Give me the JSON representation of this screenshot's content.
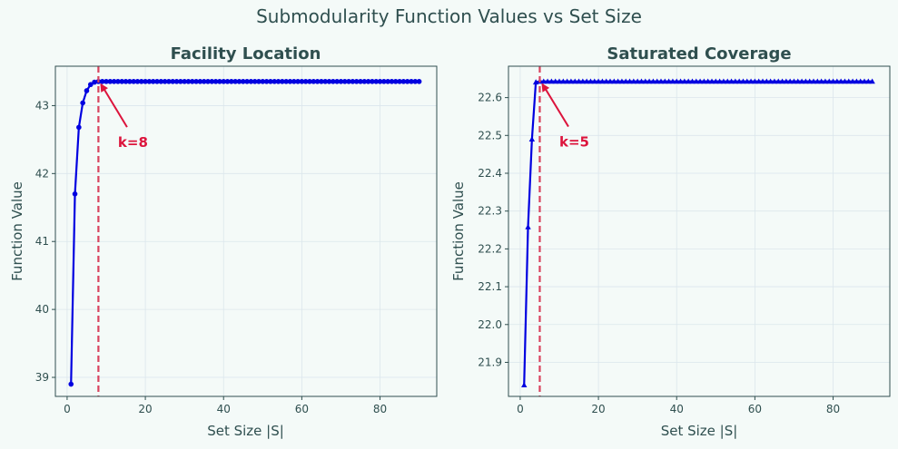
{
  "figure": {
    "suptitle": "Submodularity Function Values vs Set Size",
    "background": "#f4faf8"
  },
  "colors": {
    "line": "#0000e0",
    "vline": "#d9435e",
    "annotation": "#dc143c",
    "text": "#2f4f4f",
    "grid": "#dbe6ec",
    "axes_bg": "#f4faf8",
    "spine": "#2f4f4f"
  },
  "chart_data": [
    {
      "type": "line",
      "title": "Facility Location",
      "xlabel": "Set Size |S|",
      "ylabel": "Function Value",
      "xlim": [
        -3,
        94.5
      ],
      "ylim": [
        38.72,
        43.58
      ],
      "xticks": [
        0,
        20,
        40,
        60,
        80
      ],
      "xtick_labels": [
        "0",
        "20",
        "40",
        "60",
        "80"
      ],
      "yticks": [
        39,
        40,
        41,
        42,
        43
      ],
      "ytick_labels": [
        "39",
        "40",
        "41",
        "42",
        "43"
      ],
      "grid": true,
      "marker": "circle",
      "x_start": 1,
      "x_end": 90,
      "values_head": [
        38.9,
        41.7,
        42.68,
        43.04,
        43.22,
        43.31,
        43.345,
        43.355
      ],
      "plateau": 43.355,
      "vline_x": 8,
      "annotation": {
        "text": "k=8",
        "xy": [
          8,
          43.355
        ],
        "text_xy": [
          13,
          42.47
        ]
      }
    },
    {
      "type": "line",
      "title": "Saturated Coverage",
      "xlabel": "Set Size |S|",
      "ylabel": "Function Value",
      "xlim": [
        -3,
        94.5
      ],
      "ylim": [
        21.81,
        22.683
      ],
      "xticks": [
        0,
        20,
        40,
        60,
        80
      ],
      "xtick_labels": [
        "0",
        "20",
        "40",
        "60",
        "80"
      ],
      "yticks": [
        21.9,
        22.0,
        22.1,
        22.2,
        22.3,
        22.4,
        22.5,
        22.6
      ],
      "ytick_labels": [
        "21.9",
        "22.0",
        "22.1",
        "22.2",
        "22.3",
        "22.4",
        "22.5",
        "22.6"
      ],
      "grid": true,
      "marker": "triangle",
      "x_start": 1,
      "x_end": 90,
      "values_head": [
        21.84,
        22.258,
        22.49,
        22.641,
        22.643
      ],
      "plateau": 22.643,
      "vline_x": 5,
      "annotation": {
        "text": "k=5",
        "xy": [
          5,
          22.643
        ],
        "text_xy": [
          10,
          22.485
        ]
      }
    }
  ]
}
